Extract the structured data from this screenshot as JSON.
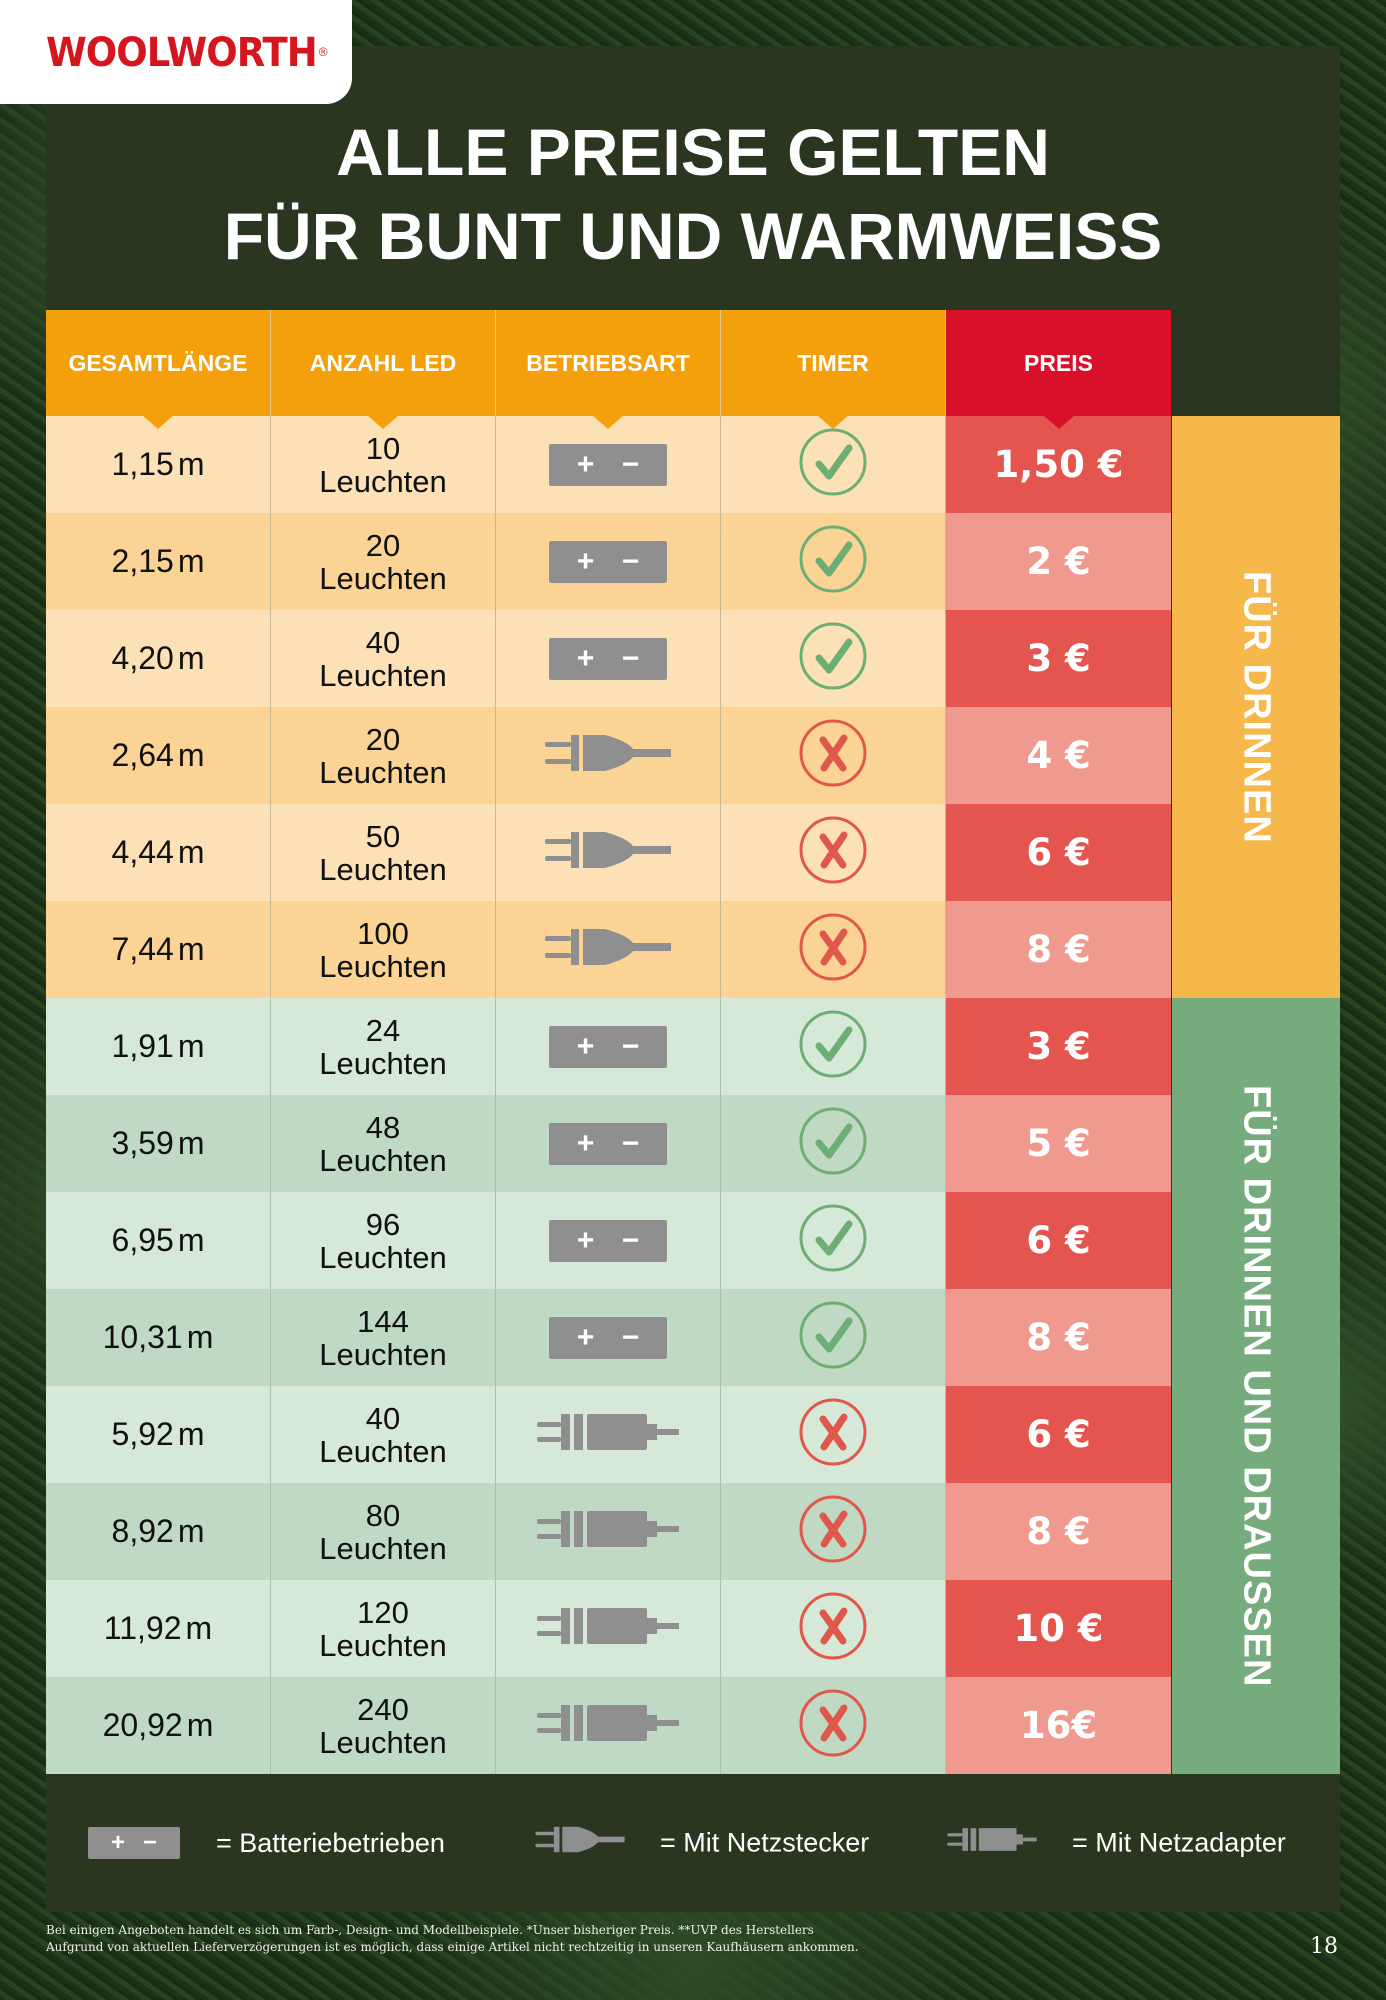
{
  "brand": {
    "logo": "WOOLWORTH",
    "reg_mark": "®"
  },
  "headline": {
    "line1": "ALLE PREISE GELTEN",
    "line2": "FÜR BUNT UND WARMWEISS"
  },
  "table": {
    "headers": {
      "length": "GESAMTLÄNGE",
      "led": "ANZAHL LED",
      "mode": "BETRIEBSART",
      "timer": "TIMER",
      "price": "PREIS"
    },
    "unit": "m",
    "led_word": "Leuchten",
    "battery_symbols": {
      "plus": "+",
      "minus": "−"
    },
    "rows": [
      {
        "length": "1,15",
        "led": "10",
        "mode": "battery",
        "timer": true,
        "price": "1,50 €"
      },
      {
        "length": "2,15",
        "led": "20",
        "mode": "battery",
        "timer": true,
        "price": "2 €"
      },
      {
        "length": "4,20",
        "led": "40",
        "mode": "battery",
        "timer": true,
        "price": "3 €"
      },
      {
        "length": "2,64",
        "led": "20",
        "mode": "plug",
        "timer": false,
        "price": "4 €"
      },
      {
        "length": "4,44",
        "led": "50",
        "mode": "plug",
        "timer": false,
        "price": "6 €"
      },
      {
        "length": "7,44",
        "led": "100",
        "mode": "plug",
        "timer": false,
        "price": "8 €"
      },
      {
        "length": "1,91",
        "led": "24",
        "mode": "battery",
        "timer": true,
        "price": "3 €"
      },
      {
        "length": "3,59",
        "led": "48",
        "mode": "battery",
        "timer": true,
        "price": "5 €"
      },
      {
        "length": "6,95",
        "led": "96",
        "mode": "battery",
        "timer": true,
        "price": "6 €"
      },
      {
        "length": "10,31",
        "led": "144",
        "mode": "battery",
        "timer": true,
        "price": "8 €"
      },
      {
        "length": "5,92",
        "led": "40",
        "mode": "adapter",
        "timer": false,
        "price": "6 €"
      },
      {
        "length": "8,92",
        "led": "80",
        "mode": "adapter",
        "timer": false,
        "price": "8 €"
      },
      {
        "length": "11,92",
        "led": "120",
        "mode": "adapter",
        "timer": false,
        "price": "10 €"
      },
      {
        "length": "20,92",
        "led": "240",
        "mode": "adapter",
        "timer": false,
        "price": "16€"
      }
    ]
  },
  "sections": {
    "indoor": "FÜR DRINNEN",
    "outdoor": "FÜR DRINNEN UND DRAUSSEN"
  },
  "legend": {
    "battery": "= Batteriebetrieben",
    "plug": "= Mit Netzstecker",
    "adapter": "= Mit Netzadapter"
  },
  "icons": {
    "battery": "battery-icon",
    "plug": "power-plug-icon",
    "adapter": "power-adapter-icon",
    "timer_yes": "checkmark-icon",
    "timer_no": "cross-icon"
  },
  "colors": {
    "orange": "#f4a00c",
    "red": "#d9102a",
    "panel": "#2b3621",
    "check": "#6cae74",
    "cross": "#e0574b"
  },
  "footnote": {
    "line1": "Bei einigen Angeboten handelt es sich um Farb-, Design- und Modellbeispiele.  *Unser bisheriger Preis.  **UVP des Herstellers",
    "line2": "Aufgrund von aktuellen Lieferverzögerungen ist es möglich, dass einige Artikel nicht rechtzeitig in unseren Kaufhäusern ankommen."
  },
  "page_number": "18"
}
